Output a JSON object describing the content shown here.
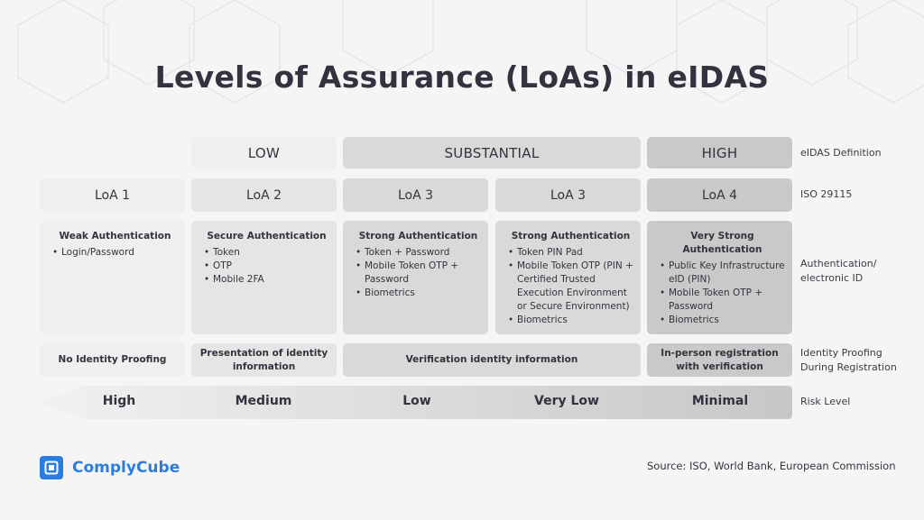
{
  "title": "Levels of Assurance (LoAs) in eIDAS",
  "colors": {
    "brand": "#2b7de0",
    "text": "#34323f"
  },
  "row_labels": {
    "definition": "eIDAS Definition",
    "iso": "ISO 29115",
    "auth": "Authentication/\nelectronic ID",
    "proofing": "Identity Proofing\nDuring Registration",
    "risk": "Risk Level"
  },
  "definitions": [
    "LOW",
    "SUBSTANTIAL",
    "HIGH"
  ],
  "loas": [
    "LoA 1",
    "LoA 2",
    "LoA 3",
    "LoA 3",
    "LoA 4"
  ],
  "auth": [
    {
      "heading": "Weak Authentication",
      "items": [
        "Login/Password"
      ]
    },
    {
      "heading": "Secure Authentication",
      "items": [
        "Token",
        "OTP",
        "Mobile 2FA"
      ]
    },
    {
      "heading": "Strong Authentication",
      "items": [
        "Token + Password",
        "Mobile Token OTP + Password",
        "Biometrics"
      ]
    },
    {
      "heading": "Strong Authentication",
      "items": [
        "Token PIN Pad",
        "Mobile Token OTP (PIN + Certified Trusted Execution Environment or Secure Environment)",
        "Biometrics"
      ]
    },
    {
      "heading": "Very Strong Authentication",
      "items": [
        "Public Key Infrastructure eID (PIN)",
        "Mobile Token OTP + Password",
        "Biometrics"
      ]
    }
  ],
  "proofing": [
    "No Identity Proofing",
    "Presentation of identity information",
    "Verification identity information",
    "In-person registration with verification"
  ],
  "risk": [
    "High",
    "Medium",
    "Low",
    "Very Low",
    "Minimal"
  ],
  "brand": {
    "name": "ComplyCube"
  },
  "source": "Source: ISO, World Bank, European Commission"
}
